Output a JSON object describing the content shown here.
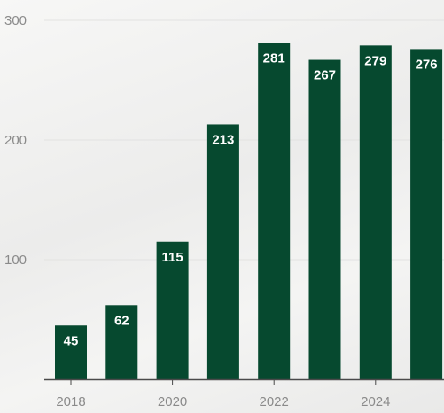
{
  "chart_data": {
    "type": "bar",
    "categories": [
      "2018",
      "2019",
      "2020",
      "2021",
      "2022",
      "2023",
      "2024",
      "2025"
    ],
    "values": [
      45,
      62,
      115,
      213,
      281,
      267,
      279,
      276
    ],
    "x_tick_labels": [
      "2018",
      "2020",
      "2022",
      "2024"
    ],
    "y_ticks": [
      100,
      200,
      300
    ],
    "ylim": [
      0,
      300
    ],
    "grid": true,
    "bar_color": "#06492f",
    "title": "",
    "xlabel": "",
    "ylabel": ""
  }
}
